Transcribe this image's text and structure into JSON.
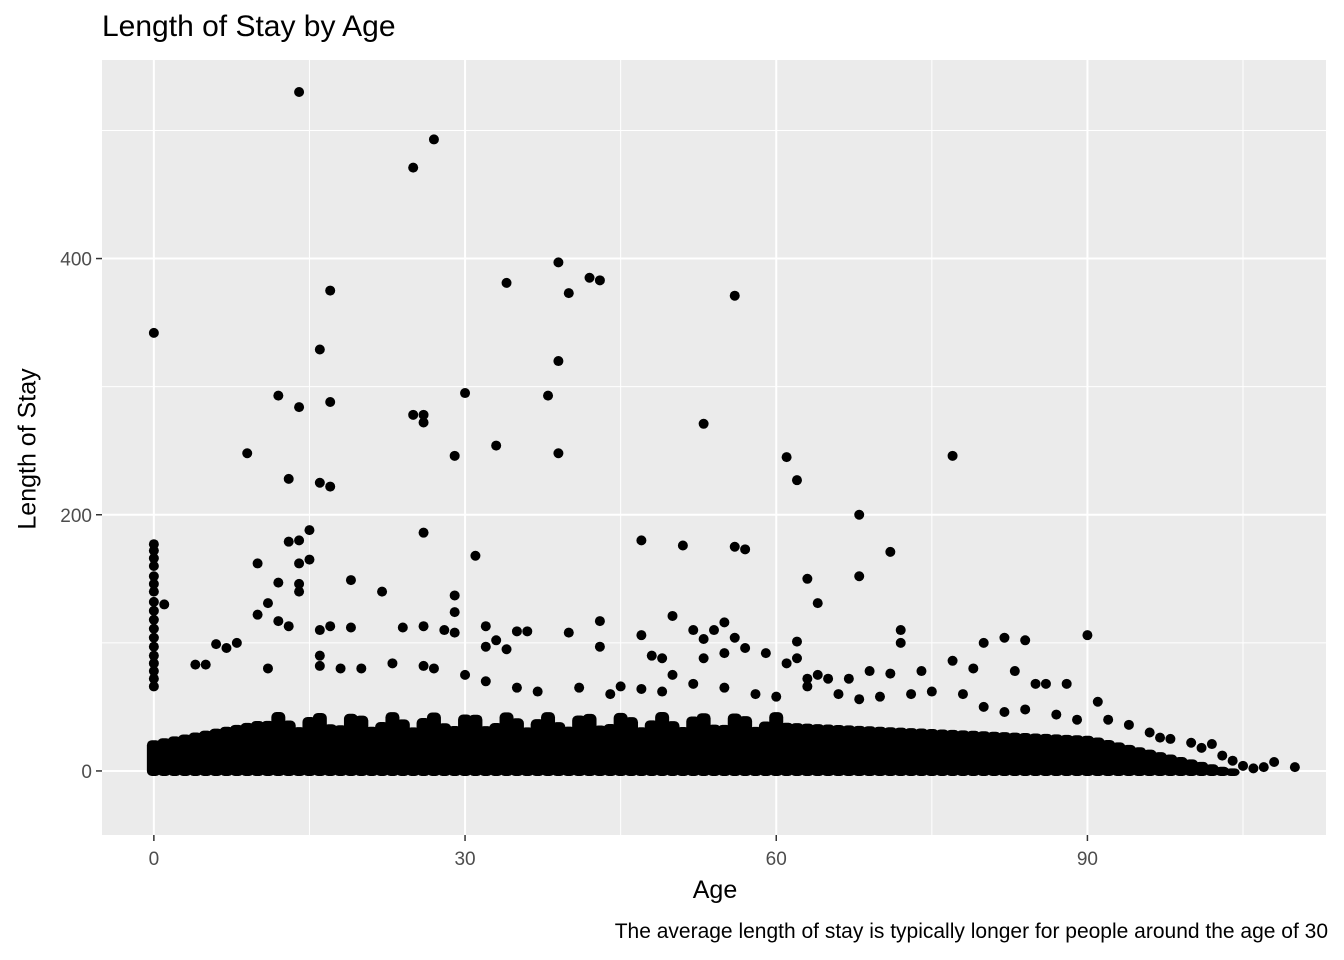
{
  "chart_data": {
    "type": "scatter",
    "title": "Length of Stay by Age",
    "xlabel": "Age",
    "ylabel": "Length of Stay",
    "caption": "The average length of stay is typically longer for people around the age of 30",
    "xlim": [
      -5,
      113
    ],
    "ylim": [
      -50,
      555
    ],
    "x_ticks": [
      0,
      30,
      60,
      90
    ],
    "y_ticks": [
      0,
      200,
      400
    ],
    "grid": true,
    "legend": "none",
    "colors": {
      "panel": "#ebebeb",
      "grid": "#ffffff",
      "point": "#000000",
      "tick_text": "#4d4d4d"
    },
    "points": [
      [
        14,
        530
      ],
      [
        27,
        493
      ],
      [
        25,
        471
      ],
      [
        39,
        397
      ],
      [
        17,
        375
      ],
      [
        42,
        385
      ],
      [
        43,
        383
      ],
      [
        34,
        381
      ],
      [
        40,
        373
      ],
      [
        56,
        371
      ],
      [
        0,
        342
      ],
      [
        16,
        329
      ],
      [
        39,
        320
      ],
      [
        12,
        293
      ],
      [
        30,
        295
      ],
      [
        38,
        293
      ],
      [
        17,
        288
      ],
      [
        14,
        284
      ],
      [
        25,
        278
      ],
      [
        26,
        278
      ],
      [
        26,
        272
      ],
      [
        53,
        271
      ],
      [
        9,
        248
      ],
      [
        29,
        246
      ],
      [
        39,
        248
      ],
      [
        33,
        254
      ],
      [
        61,
        245
      ],
      [
        77,
        246
      ],
      [
        13,
        228
      ],
      [
        16,
        225
      ],
      [
        17,
        222
      ],
      [
        62,
        227
      ],
      [
        68,
        200
      ],
      [
        15,
        188
      ],
      [
        26,
        186
      ],
      [
        14,
        180
      ],
      [
        13,
        179
      ],
      [
        47,
        180
      ],
      [
        51,
        176
      ],
      [
        56,
        175
      ],
      [
        57,
        173
      ],
      [
        71,
        171
      ],
      [
        31,
        168
      ],
      [
        10,
        162
      ],
      [
        15,
        165
      ],
      [
        14,
        162
      ],
      [
        63,
        150
      ],
      [
        68,
        152
      ],
      [
        19,
        149
      ],
      [
        12,
        147
      ],
      [
        14,
        146
      ],
      [
        22,
        140
      ],
      [
        14,
        140
      ],
      [
        29,
        137
      ],
      [
        64,
        131
      ],
      [
        29,
        124
      ],
      [
        1,
        130
      ],
      [
        10,
        122
      ],
      [
        11,
        131
      ],
      [
        50,
        121
      ],
      [
        12,
        117
      ],
      [
        43,
        117
      ],
      [
        55,
        116
      ],
      [
        13,
        113
      ],
      [
        16,
        110
      ],
      [
        17,
        113
      ],
      [
        24,
        112
      ],
      [
        19,
        112
      ],
      [
        26,
        113
      ],
      [
        28,
        110
      ],
      [
        29,
        108
      ],
      [
        32,
        113
      ],
      [
        33,
        102
      ],
      [
        35,
        109
      ],
      [
        36,
        109
      ],
      [
        40,
        108
      ],
      [
        47,
        106
      ],
      [
        52,
        110
      ],
      [
        53,
        103
      ],
      [
        54,
        110
      ],
      [
        56,
        104
      ],
      [
        62,
        101
      ],
      [
        72,
        110
      ],
      [
        72,
        100
      ],
      [
        80,
        100
      ],
      [
        82,
        104
      ],
      [
        84,
        102
      ],
      [
        90,
        106
      ],
      [
        6,
        99
      ],
      [
        7,
        96
      ],
      [
        8,
        100
      ],
      [
        16,
        90
      ],
      [
        34,
        95
      ],
      [
        32,
        97
      ],
      [
        43,
        97
      ],
      [
        48,
        90
      ],
      [
        49,
        88
      ],
      [
        53,
        88
      ],
      [
        55,
        92
      ],
      [
        57,
        96
      ],
      [
        59,
        92
      ],
      [
        61,
        84
      ],
      [
        62,
        88
      ],
      [
        63,
        72
      ],
      [
        64,
        75
      ],
      [
        65,
        72
      ],
      [
        67,
        72
      ],
      [
        69,
        78
      ],
      [
        71,
        76
      ],
      [
        74,
        78
      ],
      [
        77,
        86
      ],
      [
        79,
        80
      ],
      [
        83,
        78
      ],
      [
        85,
        68
      ],
      [
        86,
        68
      ],
      [
        88,
        68
      ],
      [
        91,
        54
      ],
      [
        5,
        83
      ],
      [
        4,
        83
      ],
      [
        11,
        80
      ],
      [
        16,
        82
      ],
      [
        18,
        80
      ],
      [
        20,
        80
      ],
      [
        23,
        84
      ],
      [
        26,
        82
      ],
      [
        27,
        80
      ],
      [
        30,
        75
      ],
      [
        32,
        70
      ],
      [
        35,
        65
      ],
      [
        37,
        62
      ],
      [
        41,
        65
      ],
      [
        44,
        60
      ],
      [
        45,
        66
      ],
      [
        47,
        64
      ],
      [
        49,
        62
      ],
      [
        50,
        75
      ],
      [
        52,
        68
      ],
      [
        55,
        65
      ],
      [
        58,
        60
      ],
      [
        60,
        58
      ],
      [
        63,
        66
      ],
      [
        66,
        60
      ],
      [
        68,
        56
      ],
      [
        70,
        58
      ],
      [
        73,
        60
      ],
      [
        75,
        62
      ],
      [
        78,
        60
      ],
      [
        80,
        50
      ],
      [
        82,
        46
      ],
      [
        84,
        48
      ],
      [
        87,
        44
      ],
      [
        89,
        40
      ],
      [
        92,
        40
      ],
      [
        94,
        36
      ],
      [
        96,
        30
      ],
      [
        97,
        26
      ],
      [
        98,
        25
      ],
      [
        100,
        22
      ],
      [
        101,
        18
      ],
      [
        102,
        21
      ],
      [
        103,
        12
      ],
      [
        104,
        8
      ],
      [
        105,
        4
      ],
      [
        106,
        2
      ],
      [
        107,
        3
      ],
      [
        108,
        7
      ],
      [
        110,
        3
      ],
      [
        0,
        177
      ],
      [
        0,
        172
      ],
      [
        0,
        166
      ],
      [
        0,
        160
      ],
      [
        0,
        152
      ],
      [
        0,
        146
      ],
      [
        0,
        140
      ],
      [
        0,
        132
      ],
      [
        0,
        125
      ],
      [
        0,
        118
      ],
      [
        0,
        111
      ],
      [
        0,
        104
      ],
      [
        0,
        97
      ],
      [
        0,
        90
      ],
      [
        0,
        84
      ],
      [
        0,
        78
      ],
      [
        0,
        72
      ],
      [
        0,
        66
      ]
    ]
  }
}
